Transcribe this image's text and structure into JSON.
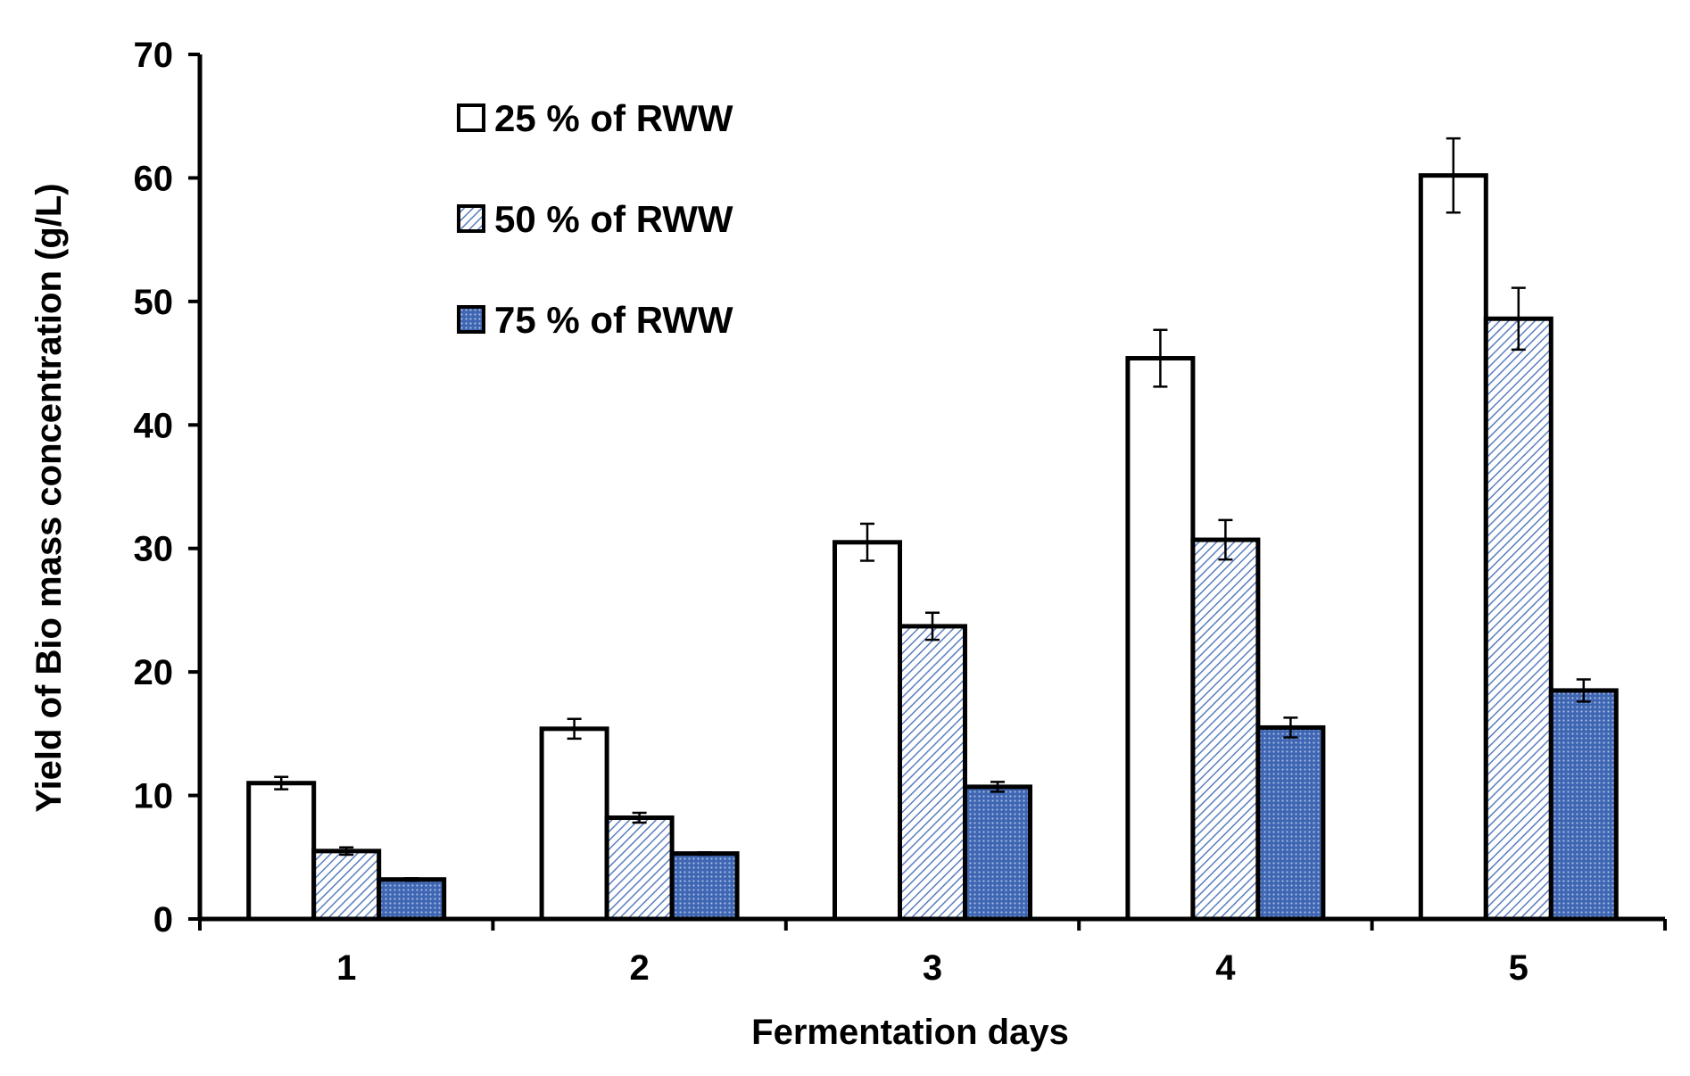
{
  "chart_data": {
    "type": "bar",
    "title": "",
    "xlabel": "Fermentation days",
    "ylabel": "Yield of Bio mass concentration (g/L)",
    "ylim": [
      0,
      70
    ],
    "yticks": [
      0,
      10,
      20,
      30,
      40,
      50,
      60,
      70
    ],
    "categories": [
      "1",
      "2",
      "3",
      "4",
      "5"
    ],
    "grid": false,
    "legend_position": "top-left",
    "series": [
      {
        "name": "25 % of RWW",
        "values": [
          11.0,
          15.4,
          30.5,
          45.4,
          60.2
        ],
        "errors": [
          0.5,
          0.8,
          1.5,
          2.3,
          3.0
        ],
        "fill": "white",
        "color": "#ffffff"
      },
      {
        "name": "50 % of RWW",
        "values": [
          5.5,
          8.2,
          23.7,
          30.7,
          48.6
        ],
        "errors": [
          0.3,
          0.4,
          1.1,
          1.6,
          2.5
        ],
        "fill": "diagonal-hatch",
        "color": "#4a6fb5"
      },
      {
        "name": "75 % of RWW",
        "values": [
          3.2,
          5.3,
          10.7,
          15.5,
          18.5
        ],
        "errors": [
          0.1,
          0.1,
          0.4,
          0.8,
          0.9
        ],
        "fill": "dotted",
        "color": "#3a62b0"
      }
    ]
  }
}
